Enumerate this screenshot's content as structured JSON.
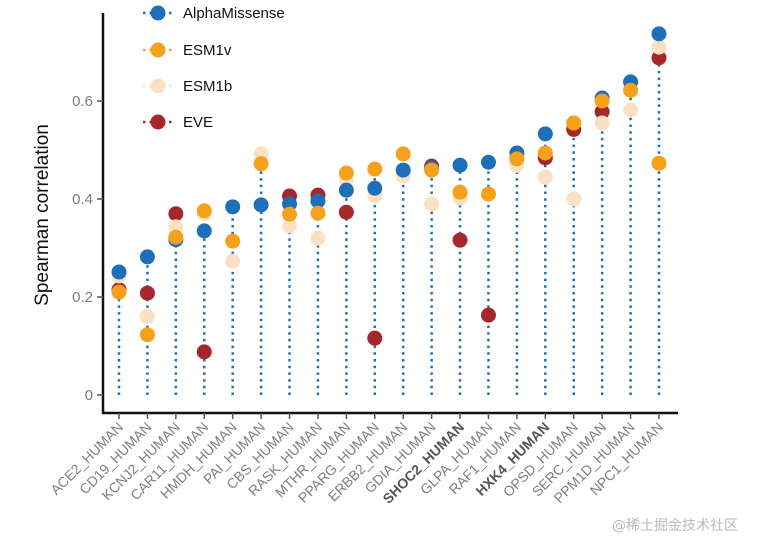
{
  "chart_data": {
    "type": "scatter",
    "subtype": "dot-plot with dotted drop lines",
    "title": "",
    "xlabel": "",
    "ylabel": "Spearman correlation",
    "ylim": [
      0,
      0.75
    ],
    "yticks": [
      0,
      0.2,
      0.4,
      0.6
    ],
    "ytick_labels": [
      "0",
      "0.2",
      "0.4",
      "0.6"
    ],
    "grid": false,
    "legend_position": "top-left",
    "categories": [
      "ACE2_HUMAN",
      "CD19_HUMAN",
      "KCNJ2_HUMAN",
      "CAR11_HUMAN",
      "HMDH_HUMAN",
      "PAI_HUMAN",
      "CBS_HUMAN",
      "RASK_HUMAN",
      "MTHR_HUMAN",
      "PPARG_HUMAN",
      "ERBB2_HUMAN",
      "GDIA_HUMAN",
      "SHOC2_HUMAN",
      "GLPA_HUMAN",
      "RAF1_HUMAN",
      "HXK4_HUMAN",
      "OPSD_HUMAN",
      "SERC_HUMAN",
      "PPM1D_HUMAN",
      "NPC1_HUMAN"
    ],
    "bold_categories": [
      "SHOC2_HUMAN",
      "HXK4_HUMAN"
    ],
    "series": [
      {
        "name": "EVE",
        "color": "#a5262b",
        "values": [
          0.215,
          0.208,
          0.37,
          0.088,
          null,
          null,
          0.406,
          0.408,
          0.373,
          0.116,
          null,
          0.467,
          0.316,
          0.163,
          null,
          0.484,
          0.542,
          0.578,
          null,
          0.688
        ]
      },
      {
        "name": "ESM1b",
        "color": "#fce0c4",
        "values": [
          0.243,
          0.16,
          0.343,
          0.37,
          0.273,
          0.492,
          0.345,
          0.32,
          0.44,
          0.406,
          0.447,
          0.39,
          0.402,
          0.41,
          0.469,
          0.445,
          0.4,
          0.555,
          0.582,
          0.71
        ]
      },
      {
        "name": "AlphaMissense",
        "color": "#1c6fb8",
        "values": [
          0.251,
          0.282,
          0.317,
          0.335,
          0.384,
          0.388,
          0.39,
          0.396,
          0.418,
          0.422,
          0.459,
          0.463,
          0.469,
          0.475,
          0.494,
          0.533,
          0.555,
          0.606,
          0.639,
          0.737
        ]
      },
      {
        "name": "ESM1v",
        "color": "#f5a11c",
        "values": [
          0.21,
          0.123,
          0.322,
          0.376,
          0.314,
          0.472,
          0.369,
          0.371,
          0.453,
          0.461,
          0.492,
          0.459,
          0.414,
          0.41,
          0.482,
          0.494,
          0.555,
          0.6,
          0.622,
          0.473
        ]
      }
    ],
    "legend": [
      {
        "name": "AlphaMissense",
        "color": "#1c6fb8"
      },
      {
        "name": "ESM1v",
        "color": "#f5a11c"
      },
      {
        "name": "ESM1b",
        "color": "#fce0c4"
      },
      {
        "name": "EVE",
        "color": "#a5262b"
      }
    ],
    "drop_line_color": "#1c6fb8"
  },
  "watermark": "@稀土掘金技术社区"
}
